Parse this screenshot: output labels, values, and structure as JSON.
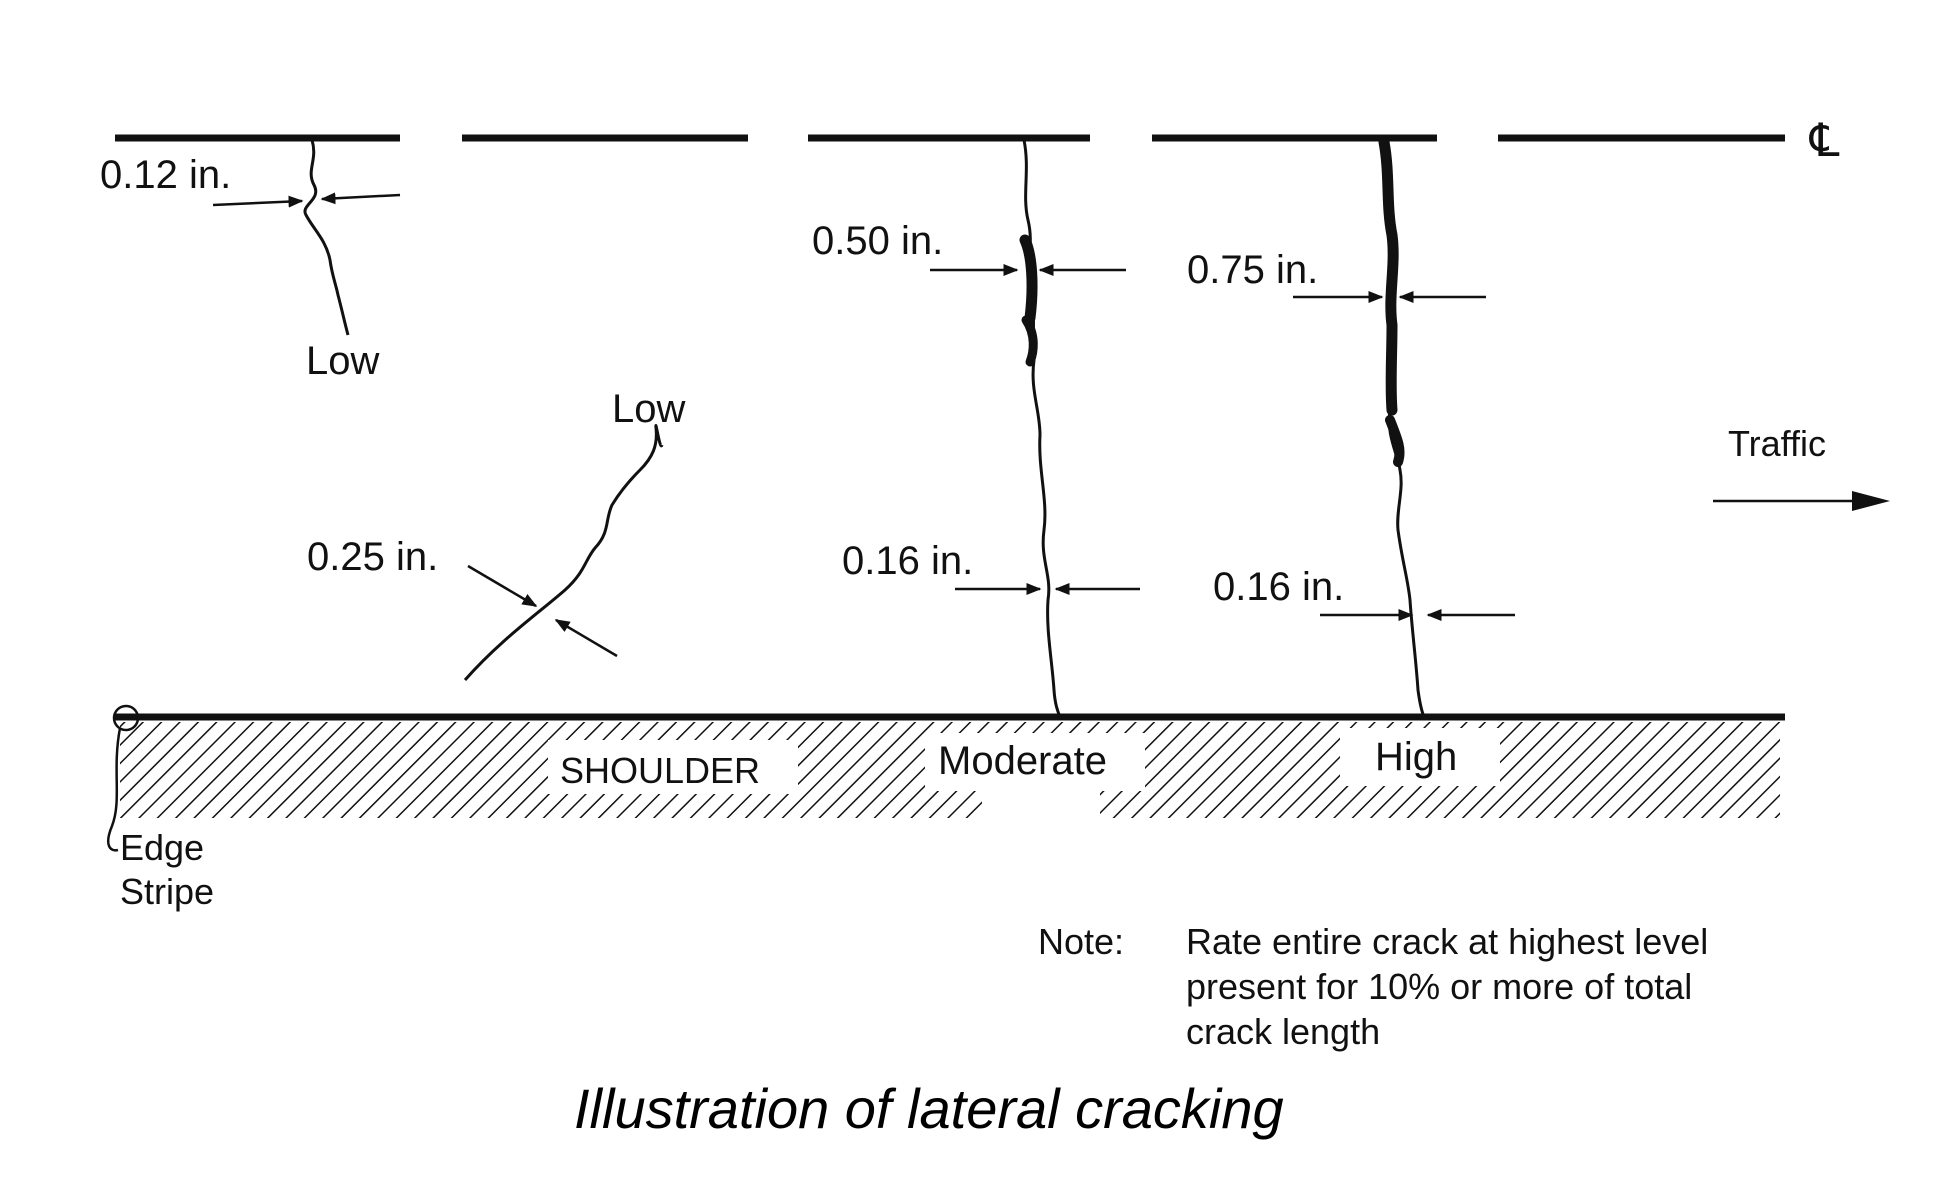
{
  "diagram": {
    "centerline_symbol": "℄",
    "cracks": [
      {
        "severity_label": "Low",
        "width_label": "0.12 in."
      },
      {
        "severity_label": "Low",
        "width_label": "0.25 in."
      },
      {
        "severity_label": "Moderate",
        "width_labels": [
          "0.50 in.",
          "0.16 in."
        ]
      },
      {
        "severity_label": "High",
        "width_labels": [
          "0.75 in.",
          "0.16 in."
        ]
      }
    ],
    "traffic_label": "Traffic",
    "shoulder_label": "SHOULDER",
    "edge_stripe_label": [
      "Edge",
      "Stripe"
    ],
    "note": {
      "label": "Note:",
      "lines": [
        "Rate entire crack at highest level",
        "present for 10% or more of total",
        "crack length"
      ]
    },
    "caption": "Illustration of lateral cracking"
  }
}
